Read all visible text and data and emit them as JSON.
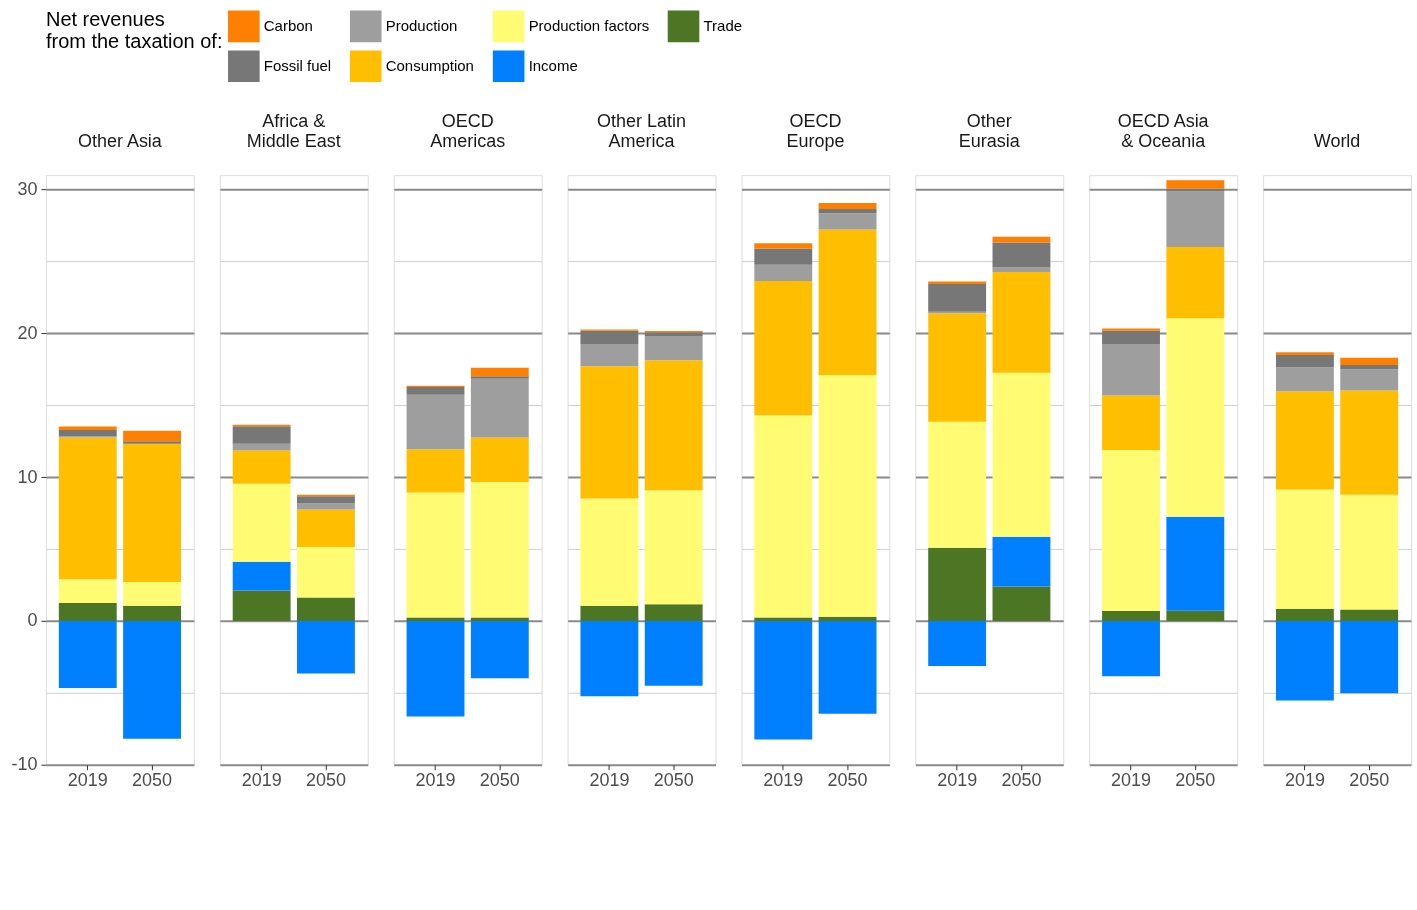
{
  "chart_data": [
    {
      "type": "bar",
      "stacked": true,
      "title": "Other Asia",
      "legend": "top",
      "legend_title": "Net revenues\nfrom the taxation of:",
      "categories": [
        "2019",
        "2050"
      ],
      "ylim": [
        -10,
        31
      ],
      "yticks": [
        -10,
        {
          "value": -5,
          "label": null
        },
        0,
        {
          "value": 5,
          "label": null
        },
        10,
        {
          "value": 15,
          "label": null
        },
        20,
        {
          "value": 25,
          "label": null
        },
        30
      ],
      "grid": "y",
      "series": [
        {
          "name": "Trade",
          "color": "#4c7524",
          "values": [
            1.24,
            1.05
          ]
        },
        {
          "name": "Income",
          "color": "#0080ff",
          "values": [
            -4.66,
            -8.2
          ]
        },
        {
          "name": "Production factors",
          "color": "#fffb73",
          "values": [
            1.66,
            1.66
          ]
        },
        {
          "name": "Consumption",
          "color": "#ffbf00",
          "values": [
            9.85,
            9.62
          ]
        },
        {
          "name": "Production",
          "color": "#9e9e9e",
          "values": [
            0.1,
            0
          ]
        },
        {
          "name": "Fossil fuel",
          "color": "#777777",
          "values": [
            0.43,
            0.16
          ]
        },
        {
          "name": "Carbon",
          "color": "#ff8000",
          "values": [
            0.24,
            0.74
          ]
        }
      ]
    },
    {
      "type": "bar",
      "stacked": true,
      "title": "Africa &\nMiddle East",
      "tick_labels": "x",
      "categories": [
        "2019",
        "2050"
      ],
      "ylim": [
        -10,
        31
      ],
      "yticks": [
        -10,
        {
          "value": -5,
          "label": null
        },
        0,
        {
          "value": 5,
          "label": null
        },
        10,
        {
          "value": 15,
          "label": null
        },
        20,
        {
          "value": 25,
          "label": null
        },
        30
      ],
      "grid": "y",
      "series": [
        {
          "name": "Trade",
          "color": "#4c7524",
          "values": [
            2.11,
            1.63
          ]
        },
        {
          "name": "Income",
          "color": "#0080ff",
          "values": [
            2.0,
            -3.66
          ]
        },
        {
          "name": "Production factors",
          "color": "#fffb73",
          "values": [
            5.43,
            3.51
          ]
        },
        {
          "name": "Consumption",
          "color": "#ffbf00",
          "values": [
            2.32,
            2.61
          ]
        },
        {
          "name": "Production",
          "color": "#9e9e9e",
          "values": [
            0.47,
            0.42
          ]
        },
        {
          "name": "Fossil fuel",
          "color": "#777777",
          "values": [
            1.21,
            0.5
          ]
        },
        {
          "name": "Carbon",
          "color": "#ff8000",
          "values": [
            0.11,
            0.1
          ]
        }
      ]
    },
    {
      "type": "bar",
      "stacked": true,
      "title": "OECD\nAmericas",
      "tick_labels": "x",
      "categories": [
        "2019",
        "2050"
      ],
      "ylim": [
        -10,
        31
      ],
      "yticks": [
        -10,
        {
          "value": -5,
          "label": null
        },
        0,
        {
          "value": 5,
          "label": null
        },
        10,
        {
          "value": 15,
          "label": null
        },
        20,
        {
          "value": 25,
          "label": null
        },
        30
      ],
      "grid": "y",
      "series": [
        {
          "name": "Trade",
          "color": "#4c7524",
          "values": [
            0.24,
            0.24
          ]
        },
        {
          "name": "Income",
          "color": "#0080ff",
          "values": [
            -6.64,
            -3.98
          ]
        },
        {
          "name": "Production factors",
          "color": "#fffb73",
          "values": [
            8.69,
            9.43
          ]
        },
        {
          "name": "Consumption",
          "color": "#ffbf00",
          "values": [
            3.01,
            3.08
          ]
        },
        {
          "name": "Production",
          "color": "#9e9e9e",
          "values": [
            3.79,
            4.09
          ]
        },
        {
          "name": "Fossil fuel",
          "color": "#777777",
          "values": [
            0.53,
            0.18
          ]
        },
        {
          "name": "Carbon",
          "color": "#ff8000",
          "values": [
            0.1,
            0.58
          ]
        }
      ]
    },
    {
      "type": "bar",
      "stacked": true,
      "title": "Other Latin\nAmerica",
      "tick_labels": "x",
      "categories": [
        "2019",
        "2050"
      ],
      "ylim": [
        -10,
        31
      ],
      "yticks": [
        -10,
        {
          "value": -5,
          "label": null
        },
        0,
        {
          "value": 5,
          "label": null
        },
        10,
        {
          "value": 15,
          "label": null
        },
        20,
        {
          "value": 25,
          "label": null
        },
        30
      ],
      "grid": "y",
      "series": [
        {
          "name": "Trade",
          "color": "#4c7524",
          "values": [
            1.05,
            1.16
          ]
        },
        {
          "name": "Income",
          "color": "#0080ff",
          "values": [
            -5.24,
            -4.51
          ]
        },
        {
          "name": "Production factors",
          "color": "#fffb73",
          "values": [
            7.46,
            7.93
          ]
        },
        {
          "name": "Consumption",
          "color": "#ffbf00",
          "values": [
            9.2,
            9.04
          ]
        },
        {
          "name": "Production",
          "color": "#9e9e9e",
          "values": [
            1.55,
            1.69
          ]
        },
        {
          "name": "Fossil fuel",
          "color": "#777777",
          "values": [
            0.92,
            0.26
          ]
        },
        {
          "name": "Carbon",
          "color": "#ff8000",
          "values": [
            0.08,
            0.08
          ]
        }
      ]
    },
    {
      "type": "bar",
      "stacked": true,
      "title": "OECD\nEurope",
      "tick_labels": "x",
      "categories": [
        "2019",
        "2050"
      ],
      "ylim": [
        -10,
        31
      ],
      "yticks": [
        -10,
        {
          "value": -5,
          "label": null
        },
        0,
        {
          "value": 5,
          "label": null
        },
        10,
        {
          "value": 15,
          "label": null
        },
        20,
        {
          "value": 25,
          "label": null
        },
        30
      ],
      "grid": "y",
      "series": [
        {
          "name": "Trade",
          "color": "#4c7524",
          "values": [
            0.24,
            0.29
          ]
        },
        {
          "name": "Income",
          "color": "#0080ff",
          "values": [
            -8.25,
            -6.46
          ]
        },
        {
          "name": "Production factors",
          "color": "#fffb73",
          "values": [
            14.07,
            16.81
          ]
        },
        {
          "name": "Consumption",
          "color": "#ffbf00",
          "values": [
            9.33,
            10.12
          ]
        },
        {
          "name": "Production",
          "color": "#9e9e9e",
          "values": [
            1.13,
            1.13
          ]
        },
        {
          "name": "Fossil fuel",
          "color": "#777777",
          "values": [
            1.13,
            0.29
          ]
        },
        {
          "name": "Carbon",
          "color": "#ff8000",
          "values": [
            0.37,
            0.42
          ]
        }
      ]
    },
    {
      "type": "bar",
      "stacked": true,
      "title": "Other\nEurasia",
      "tick_labels": "x",
      "categories": [
        "2019",
        "2050"
      ],
      "ylim": [
        -10,
        31
      ],
      "yticks": [
        -10,
        {
          "value": -5,
          "label": null
        },
        0,
        {
          "value": 5,
          "label": null
        },
        10,
        {
          "value": 15,
          "label": null
        },
        20,
        {
          "value": 25,
          "label": null
        },
        30
      ],
      "grid": "y",
      "series": [
        {
          "name": "Trade",
          "color": "#4c7524",
          "values": [
            5.09,
            2.4
          ]
        },
        {
          "name": "Income",
          "color": "#0080ff",
          "values": [
            -3.14,
            3.45
          ]
        },
        {
          "name": "Production factors",
          "color": "#fffb73",
          "values": [
            8.77,
            11.41
          ]
        },
        {
          "name": "Consumption",
          "color": "#ffbf00",
          "values": [
            7.54,
            7.01
          ]
        },
        {
          "name": "Production",
          "color": "#9e9e9e",
          "values": [
            0.1,
            0.31
          ]
        },
        {
          "name": "Fossil fuel",
          "color": "#777777",
          "values": [
            1.93,
            1.74
          ]
        },
        {
          "name": "Carbon",
          "color": "#ff8000",
          "values": [
            0.18,
            0.4
          ]
        }
      ]
    },
    {
      "type": "bar",
      "stacked": true,
      "title": "OECD Asia\n& Oceania",
      "tick_labels": "x",
      "categories": [
        "2019",
        "2050"
      ],
      "ylim": [
        -10,
        31
      ],
      "yticks": [
        -10,
        {
          "value": -5,
          "label": null
        },
        0,
        {
          "value": 5,
          "label": null
        },
        10,
        {
          "value": 15,
          "label": null
        },
        20,
        {
          "value": 25,
          "label": null
        },
        30
      ],
      "grid": "y",
      "series": [
        {
          "name": "Trade",
          "color": "#4c7524",
          "values": [
            0.69,
            0.71
          ]
        },
        {
          "name": "Income",
          "color": "#0080ff",
          "values": [
            -3.85,
            6.54
          ]
        },
        {
          "name": "Production factors",
          "color": "#fffb73",
          "values": [
            11.19,
            13.8
          ]
        },
        {
          "name": "Consumption",
          "color": "#ffbf00",
          "values": [
            3.8,
            4.96
          ]
        },
        {
          "name": "Production",
          "color": "#9e9e9e",
          "values": [
            3.58,
            3.85
          ]
        },
        {
          "name": "Fossil fuel",
          "color": "#777777",
          "values": [
            0.92,
            0.21
          ]
        },
        {
          "name": "Carbon",
          "color": "#ff8000",
          "values": [
            0.16,
            0.58
          ]
        }
      ]
    },
    {
      "type": "bar",
      "stacked": true,
      "title": "World",
      "tick_labels": "x",
      "categories": [
        "2019",
        "2050"
      ],
      "ylim": [
        -10,
        31
      ],
      "yticks": [
        -10,
        {
          "value": -5,
          "label": null
        },
        0,
        {
          "value": 5,
          "label": null
        },
        10,
        {
          "value": 15,
          "label": null
        },
        20,
        {
          "value": 25,
          "label": null
        },
        30
      ],
      "grid": "y",
      "series": [
        {
          "name": "Trade",
          "color": "#4c7524",
          "values": [
            0.84,
            0.79
          ]
        },
        {
          "name": "Income",
          "color": "#0080ff",
          "values": [
            -5.53,
            -5.03
          ]
        },
        {
          "name": "Production factors",
          "color": "#fffb73",
          "values": [
            8.3,
            7.98
          ]
        },
        {
          "name": "Consumption",
          "color": "#ffbf00",
          "values": [
            6.83,
            7.25
          ]
        },
        {
          "name": "Production",
          "color": "#9e9e9e",
          "values": [
            1.68,
            1.48
          ]
        },
        {
          "name": "Fossil fuel",
          "color": "#777777",
          "values": [
            0.85,
            0.29
          ]
        },
        {
          "name": "Carbon",
          "color": "#ff8000",
          "values": [
            0.18,
            0.52
          ]
        }
      ]
    }
  ]
}
